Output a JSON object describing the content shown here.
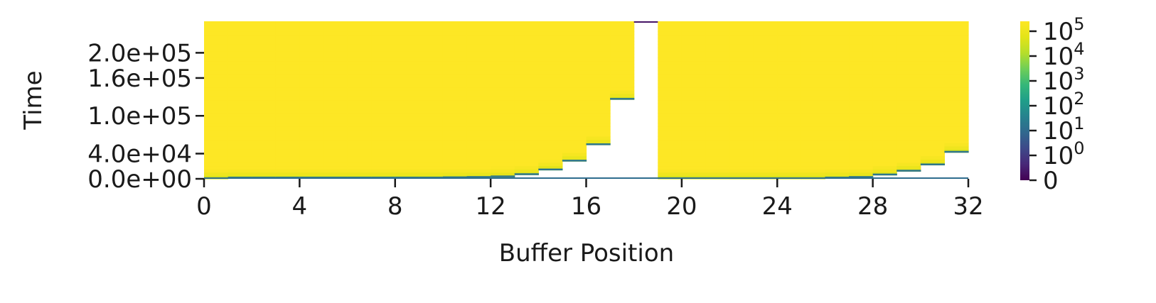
{
  "chart_data": {
    "type": "heatmap",
    "xlabel": "Buffer Position",
    "ylabel": "Time",
    "x_ticks": [
      "0",
      "4",
      "8",
      "12",
      "16",
      "20",
      "24",
      "28",
      "32"
    ],
    "x_tick_values": [
      0,
      4,
      8,
      12,
      16,
      20,
      24,
      28,
      32
    ],
    "y_ticks": [
      "0.0e+00",
      "4.0e+04",
      "1.0e+05",
      "1.6e+05",
      "2.0e+05"
    ],
    "y_tick_values": [
      0,
      40000,
      100000,
      160000,
      200000
    ],
    "xlim": [
      0,
      32
    ],
    "ylim": [
      0,
      250000
    ],
    "colormap": "viridis",
    "color_scale": "symlog",
    "colorbar_ticks": [
      {
        "base": "0",
        "exp": ""
      },
      {
        "base": "10",
        "exp": "0"
      },
      {
        "base": "10",
        "exp": "1"
      },
      {
        "base": "10",
        "exp": "2"
      },
      {
        "base": "10",
        "exp": "3"
      },
      {
        "base": "10",
        "exp": "4"
      },
      {
        "base": "10",
        "exp": "5"
      }
    ],
    "colorbar_range": [
      0,
      200000
    ],
    "column_start_times": [
      0,
      1000,
      1000,
      1000,
      1000,
      1000,
      1000,
      1000,
      1000,
      1000,
      1500,
      2000,
      3000,
      6500,
      14000,
      28000,
      54000,
      126000,
      250000,
      0,
      0,
      0,
      0,
      0,
      0,
      0,
      1000,
      2000,
      6000,
      12000,
      22000,
      42000
    ]
  }
}
